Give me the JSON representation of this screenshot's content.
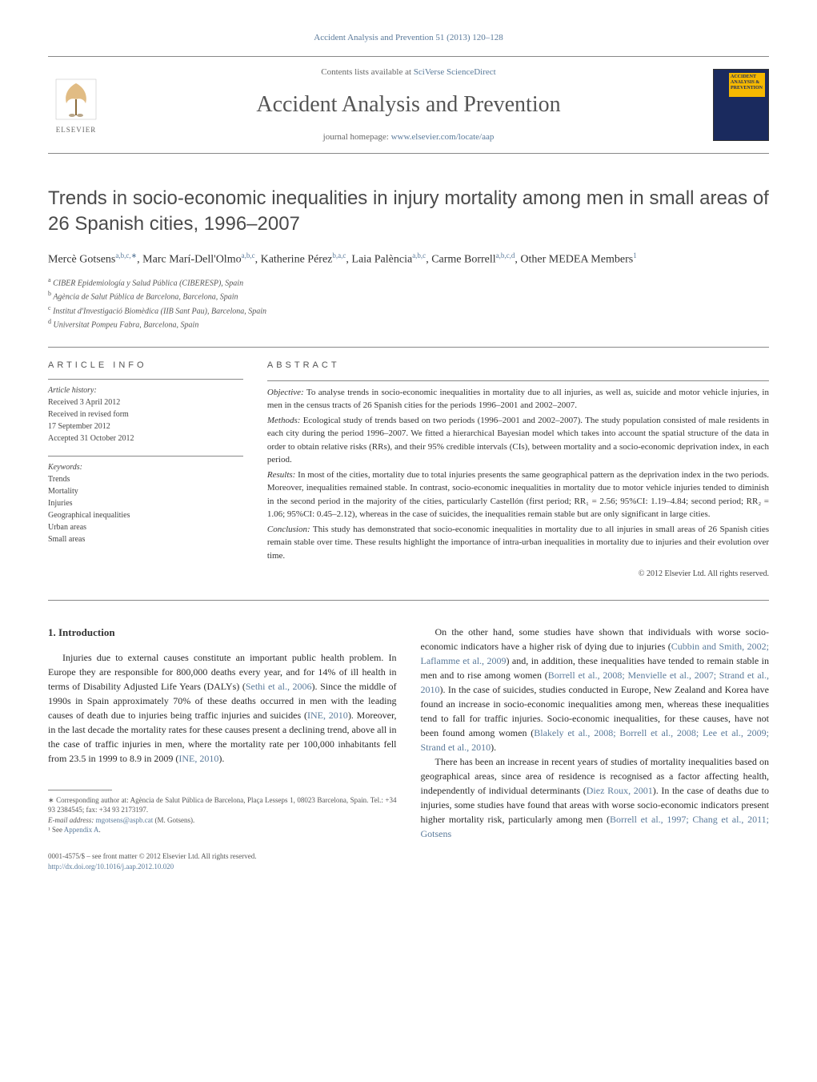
{
  "journal_ref": "Accident Analysis and Prevention 51 (2013) 120–128",
  "header": {
    "contents_prefix": "Contents lists available at ",
    "contents_link": "SciVerse ScienceDirect",
    "journal_title": "Accident Analysis and Prevention",
    "homepage_prefix": "journal homepage: ",
    "homepage_link": "www.elsevier.com/locate/aap",
    "elsevier_label": "ELSEVIER",
    "cover_badge": "ACCIDENT ANALYSIS & PREVENTION"
  },
  "article": {
    "title": "Trends in socio-economic inequalities in injury mortality among men in small areas of 26 Spanish cities, 1996–2007",
    "authors_html": "Mercè Gotsens<sup>a,b,c,∗</sup>, Marc Marí-Dell'Olmo<sup>a,b,c</sup>, Katherine Pérez<sup>b,a,c</sup>, Laia Palència<sup>a,b,c</sup>, Carme Borrell<sup>a,b,c,d</sup>, Other MEDEA Members<sup>1</sup>",
    "affiliations": [
      {
        "sup": "a",
        "text": "CIBER Epidemiología y Salud Pública (CIBERESP), Spain"
      },
      {
        "sup": "b",
        "text": "Agència de Salut Pública de Barcelona, Barcelona, Spain"
      },
      {
        "sup": "c",
        "text": "Institut d'Investigació Biomèdica (IIB Sant Pau), Barcelona, Spain"
      },
      {
        "sup": "d",
        "text": "Universitat Pompeu Fabra, Barcelona, Spain"
      }
    ]
  },
  "article_info": {
    "heading": "article info",
    "history_label": "Article history:",
    "history": [
      "Received 3 April 2012",
      "Received in revised form",
      "17 September 2012",
      "Accepted 31 October 2012"
    ],
    "keywords_label": "Keywords:",
    "keywords": [
      "Trends",
      "Mortality",
      "Injuries",
      "Geographical inequalities",
      "Urban areas",
      "Small areas"
    ]
  },
  "abstract": {
    "heading": "abstract",
    "objective_label": "Objective:",
    "objective": "To analyse trends in socio-economic inequalities in mortality due to all injuries, as well as, suicide and motor vehicle injuries, in men in the census tracts of 26 Spanish cities for the periods 1996–2001 and 2002–2007.",
    "methods_label": "Methods:",
    "methods": "Ecological study of trends based on two periods (1996–2001 and 2002–2007). The study population consisted of male residents in each city during the period 1996–2007. We fitted a hierarchical Bayesian model which takes into account the spatial structure of the data in order to obtain relative risks (RRs), and their 95% credible intervals (CIs), between mortality and a socio-economic deprivation index, in each period.",
    "results_label": "Results:",
    "results": "In most of the cities, mortality due to total injuries presents the same geographical pattern as the deprivation index in the two periods. Moreover, inequalities remained stable. In contrast, socio-economic inequalities in mortality due to motor vehicle injuries tended to diminish in the second period in the majority of the cities, particularly Castellón (first period; RR₁ = 2.56; 95%CI: 1.19–4.84; second period; RR₂ = 1.06; 95%CI: 0.45–2.12), whereas in the case of suicides, the inequalities remain stable but are only significant in large cities.",
    "conclusion_label": "Conclusion:",
    "conclusion": "This study has demonstrated that socio-economic inequalities in mortality due to all injuries in small areas of 26 Spanish cities remain stable over time. These results highlight the importance of intra-urban inequalities in mortality due to injuries and their evolution over time.",
    "copyright": "© 2012 Elsevier Ltd. All rights reserved."
  },
  "body": {
    "section_num": "1.",
    "section_title": "Introduction",
    "left_paras": [
      "Injuries due to external causes constitute an important public health problem. In Europe they are responsible for 800,000 deaths every year, and for 14% of ill health in terms of Disability Adjusted Life Years (DALYs) (<a>Sethi et al., 2006</a>). Since the middle of 1990s in Spain approximately 70% of these deaths occurred in men with the leading causes of death due to injuries being traffic injuries and suicides (<a>INE, 2010</a>). Moreover, in the last decade the mortality rates for these causes present a declining trend, above all in the case of traffic injuries in men, where the mortality rate per 100,000 inhabitants fell from 23.5 in 1999 to 8.9 in 2009 (<a>INE, 2010</a>)."
    ],
    "right_paras": [
      "On the other hand, some studies have shown that individuals with worse socio-economic indicators have a higher risk of dying due to injuries (<a>Cubbin and Smith, 2002; Laflamme et al., 2009</a>) and, in addition, these inequalities have tended to remain stable in men and to rise among women (<a>Borrell et al., 2008; Menvielle et al., 2007; Strand et al., 2010</a>). In the case of suicides, studies conducted in Europe, New Zealand and Korea have found an increase in socio-economic inequalities among men, whereas these inequalities tend to fall for traffic injuries. Socio-economic inequalities, for these causes, have not been found among women (<a>Blakely et al., 2008; Borrell et al., 2008; Lee et al., 2009; Strand et al., 2010</a>).",
      "There has been an increase in recent years of studies of mortality inequalities based on geographical areas, since area of residence is recognised as a factor affecting health, independently of individual determinants (<a>Diez Roux, 2001</a>). In the case of deaths due to injuries, some studies have found that areas with worse socio-economic indicators present higher mortality risk, particularly among men (<a>Borrell et al., 1997; Chang et al., 2011; Gotsens</a>"
    ]
  },
  "footer": {
    "corresponding": "∗ Corresponding author at: Agència de Salut Pública de Barcelona, Plaça Lesseps 1, 08023 Barcelona, Spain. Tel.: +34 93 2384545; fax: +34 93 2173197.",
    "email_label": "E-mail address: ",
    "email": "mgotsens@aspb.cat",
    "email_suffix": " (M. Gotsens).",
    "note1": "¹ See ",
    "note1_link": "Appendix A",
    "note1_suffix": "."
  },
  "bottom_meta": {
    "line1": "0001-4575/$ – see front matter © 2012 Elsevier Ltd. All rights reserved.",
    "doi": "http://dx.doi.org/10.1016/j.aap.2012.10.020"
  },
  "colors": {
    "link": "#5a7a9a",
    "text": "#2a2a2a",
    "heading": "#4a4a4a",
    "cover_bg": "#1a2a5e",
    "cover_badge_bg": "#f5b800"
  }
}
